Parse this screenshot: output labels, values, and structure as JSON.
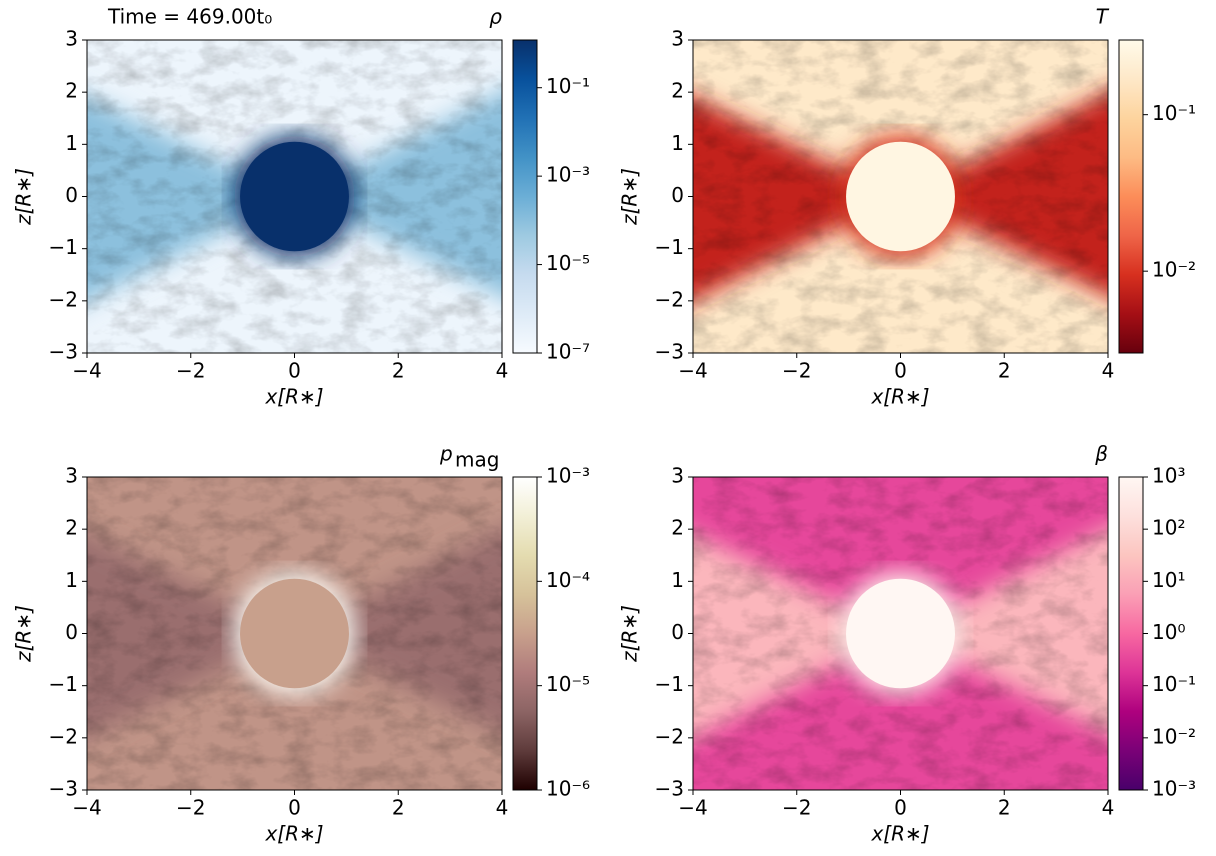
{
  "chart_data": [
    {
      "type": "heatmap",
      "title": "ρ",
      "annotation": "Time = 469.00t₀",
      "xlabel": "x[R∗]",
      "ylabel": "z[R∗]",
      "xlim": [
        -4,
        4
      ],
      "ylim": [
        -3,
        3
      ],
      "xticks": [
        {
          "value": -4,
          "label": "−4"
        },
        {
          "value": -2,
          "label": "−2"
        },
        0,
        2,
        4
      ],
      "yticks": [
        {
          "value": -3,
          "label": "−3"
        },
        {
          "value": -2,
          "label": "−2"
        },
        {
          "value": -1,
          "label": "−1"
        },
        0,
        1,
        2,
        3
      ],
      "colorbar": {
        "log": true,
        "lim": [
          1e-07,
          1.2
        ],
        "ticks": [
          {
            "value": 1e-07,
            "label": "10⁻⁷"
          },
          {
            "value": 1e-05,
            "label": "10⁻⁵"
          },
          {
            "value": 0.001,
            "label": "10⁻³"
          },
          {
            "value": 0.1,
            "label": "10⁻¹"
          }
        ]
      },
      "colormap": [
        "#f7fbff",
        "#deebf7",
        "#c6dbef",
        "#9ecae1",
        "#6baed6",
        "#4292c6",
        "#2171b5",
        "#08519c",
        "#08306b"
      ]
    },
    {
      "type": "heatmap",
      "title": "T",
      "xlabel": "x[R∗]",
      "ylabel": "z[R∗]",
      "xlim": [
        -4,
        4
      ],
      "ylim": [
        -3,
        3
      ],
      "xticks": [
        {
          "value": -4,
          "label": "−4"
        },
        {
          "value": -2,
          "label": "−2"
        },
        0,
        2,
        4
      ],
      "yticks": [
        {
          "value": -3,
          "label": "−3"
        },
        {
          "value": -2,
          "label": "−2"
        },
        {
          "value": -1,
          "label": "−1"
        },
        0,
        1,
        2,
        3
      ],
      "colorbar": {
        "log": true,
        "lim": [
          0.003,
          0.3
        ],
        "ticks": [
          {
            "value": 0.01,
            "label": "10⁻²"
          },
          {
            "value": 0.1,
            "label": "10⁻¹"
          }
        ]
      },
      "colormap": [
        "#67000d",
        "#a50f15",
        "#d7301f",
        "#ef6548",
        "#fc8d59",
        "#fdbb84",
        "#fdd49e",
        "#fee8c8",
        "#fffbea"
      ]
    },
    {
      "type": "heatmap",
      "title": "p",
      "title_subscript": "mag",
      "xlabel": "x[R∗]",
      "ylabel": "z[R∗]",
      "xlim": [
        -4,
        4
      ],
      "ylim": [
        -3,
        3
      ],
      "xticks": [
        {
          "value": -4,
          "label": "−4"
        },
        {
          "value": -2,
          "label": "−2"
        },
        0,
        2,
        4
      ],
      "yticks": [
        {
          "value": -3,
          "label": "−3"
        },
        {
          "value": -2,
          "label": "−2"
        },
        {
          "value": -1,
          "label": "−1"
        },
        0,
        1,
        2,
        3
      ],
      "colorbar": {
        "log": true,
        "lim": [
          1e-06,
          0.001
        ],
        "ticks": [
          {
            "value": 1e-06,
            "label": "10⁻⁶"
          },
          {
            "value": 1e-05,
            "label": "10⁻⁵"
          },
          {
            "value": 0.0001,
            "label": "10⁻⁴"
          },
          {
            "value": 0.001,
            "label": "10⁻³"
          }
        ]
      },
      "colormap": [
        "#1e0000",
        "#5e3b3b",
        "#8c6464",
        "#b07c7c",
        "#c8a08c",
        "#d6c29a",
        "#e4dcb0",
        "#f2efd6",
        "#ffffff"
      ]
    },
    {
      "type": "heatmap",
      "title": "β",
      "xlabel": "x[R∗]",
      "ylabel": "z[R∗]",
      "xlim": [
        -4,
        4
      ],
      "ylim": [
        -3,
        3
      ],
      "xticks": [
        {
          "value": -4,
          "label": "−4"
        },
        {
          "value": -2,
          "label": "−2"
        },
        0,
        2,
        4
      ],
      "yticks": [
        {
          "value": -3,
          "label": "−3"
        },
        {
          "value": -2,
          "label": "−2"
        },
        {
          "value": -1,
          "label": "−1"
        },
        0,
        1,
        2,
        3
      ],
      "colorbar": {
        "log": true,
        "lim": [
          0.001,
          1000
        ],
        "ticks": [
          {
            "value": 0.001,
            "label": "10⁻³"
          },
          {
            "value": 0.01,
            "label": "10⁻²"
          },
          {
            "value": 0.1,
            "label": "10⁻¹"
          },
          {
            "value": 1,
            "label": "10⁰"
          },
          {
            "value": 10,
            "label": "10¹"
          },
          {
            "value": 100,
            "label": "10²"
          },
          {
            "value": 1000,
            "label": "10³"
          }
        ]
      },
      "colormap": [
        "#49006a",
        "#7a0177",
        "#ae017e",
        "#dd3497",
        "#f768a1",
        "#fa9fb5",
        "#fcc5c0",
        "#fde0dd",
        "#fff7f3"
      ]
    }
  ]
}
